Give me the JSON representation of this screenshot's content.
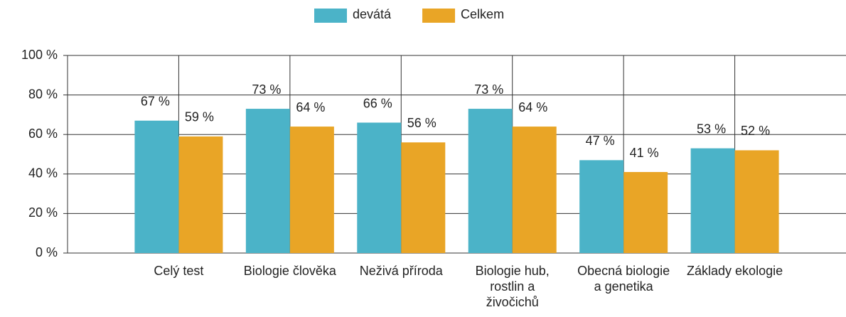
{
  "chart_data": {
    "type": "bar",
    "categories": [
      "Celý test",
      "Biologie člověka",
      "Neživá příroda",
      "Biologie hub, rostlin a živočichů",
      "Obecná biologie a genetika",
      "Základy ekologie"
    ],
    "series": [
      {
        "name": "devátá",
        "color": "#4bb3c8",
        "values": [
          67,
          73,
          66,
          73,
          47,
          53
        ],
        "value_labels": [
          "67 %",
          "73 %",
          "66 %",
          "73 %",
          "47 %",
          "53 %"
        ]
      },
      {
        "name": "Celkem",
        "color": "#e9a526",
        "values": [
          59,
          64,
          56,
          64,
          41,
          52
        ],
        "value_labels": [
          "59 %",
          "64 %",
          "56 %",
          "64 %",
          "41 %",
          "52 %"
        ]
      }
    ],
    "ylim": [
      0,
      100
    ],
    "yticks": [
      {
        "value": 0,
        "label": "0 %"
      },
      {
        "value": 20,
        "label": "20 %"
      },
      {
        "value": 40,
        "label": "40 %"
      },
      {
        "value": 60,
        "label": "60 %"
      },
      {
        "value": 80,
        "label": "80 %"
      },
      {
        "value": 100,
        "label": "100 %"
      }
    ],
    "grid": true,
    "legend": "top"
  }
}
